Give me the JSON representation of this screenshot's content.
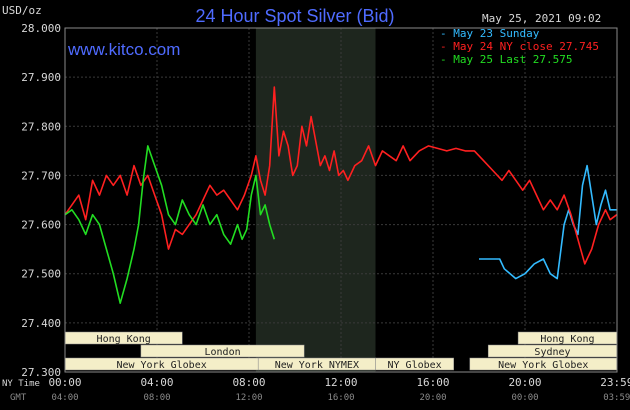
{
  "chart_data": {
    "type": "line",
    "title": "24 Hour Spot Silver (Bid)",
    "ylabel": "USD/oz",
    "site": "www.kitco.com",
    "timestamp": "May 25, 2021 09:02",
    "ylim": [
      27.3,
      28.0
    ],
    "y_ticks": [
      "27.300",
      "27.400",
      "27.500",
      "27.600",
      "27.700",
      "27.800",
      "27.900",
      "28.000"
    ],
    "x_ticks_ny": [
      "00:00",
      "04:00",
      "08:00",
      "12:00",
      "16:00",
      "20:00",
      "23:59"
    ],
    "x_ticks_gmt": [
      "04:00",
      "08:00",
      "12:00",
      "16:00",
      "20:00",
      "00:00",
      "03:59"
    ],
    "ny_label": "NY Time",
    "gmt_label": "GMT",
    "legend": [
      {
        "label": "May 23 Sunday",
        "color": "#33bbff"
      },
      {
        "label": "May 24 NY close 27.745",
        "color": "#ff2020"
      },
      {
        "label": "May 25 Last 27.575",
        "color": "#22dd22"
      }
    ],
    "series": [
      {
        "name": "May 23 Sunday",
        "color": "#33bbff",
        "x": [
          18.0,
          18.9,
          19.1,
          19.6,
          20.0,
          20.4,
          20.8,
          21.1,
          21.4,
          21.7,
          21.9,
          22.1,
          22.3,
          22.5,
          22.7,
          22.9,
          23.1,
          23.3,
          23.5,
          23.7,
          23.99
        ],
        "y": [
          27.53,
          27.53,
          27.51,
          27.49,
          27.5,
          27.52,
          27.53,
          27.5,
          27.49,
          27.6,
          27.63,
          27.6,
          27.58,
          27.68,
          27.72,
          27.66,
          27.6,
          27.64,
          27.67,
          27.63,
          27.63
        ]
      },
      {
        "name": "May 24 NY close 27.745",
        "color": "#ff2020",
        "x": [
          0.0,
          0.3,
          0.6,
          0.9,
          1.2,
          1.5,
          1.8,
          2.1,
          2.4,
          2.7,
          3.0,
          3.3,
          3.6,
          3.9,
          4.2,
          4.5,
          4.8,
          5.1,
          5.4,
          5.7,
          6.0,
          6.3,
          6.6,
          6.9,
          7.2,
          7.5,
          7.8,
          8.1,
          8.3,
          8.5,
          8.7,
          8.9,
          9.1,
          9.3,
          9.5,
          9.7,
          9.9,
          10.1,
          10.3,
          10.5,
          10.7,
          10.9,
          11.1,
          11.3,
          11.5,
          11.7,
          11.9,
          12.1,
          12.3,
          12.6,
          12.9,
          13.2,
          13.5,
          13.8,
          14.1,
          14.4,
          14.7,
          15.0,
          15.4,
          15.8,
          16.2,
          16.6,
          17.0,
          17.4,
          17.8,
          18.2,
          18.6,
          19.0,
          19.3,
          19.6,
          19.9,
          20.2,
          20.5,
          20.8,
          21.1,
          21.4,
          21.7,
          22.0,
          22.3,
          22.6,
          22.9,
          23.2,
          23.5,
          23.7,
          23.99
        ],
        "y": [
          27.62,
          27.64,
          27.66,
          27.61,
          27.69,
          27.66,
          27.7,
          27.68,
          27.7,
          27.66,
          27.72,
          27.68,
          27.7,
          27.66,
          27.62,
          27.55,
          27.59,
          27.58,
          27.6,
          27.62,
          27.65,
          27.68,
          27.66,
          27.67,
          27.65,
          27.63,
          27.66,
          27.7,
          27.74,
          27.69,
          27.66,
          27.72,
          27.88,
          27.74,
          27.79,
          27.76,
          27.7,
          27.72,
          27.8,
          27.76,
          27.82,
          27.77,
          27.72,
          27.74,
          27.71,
          27.75,
          27.7,
          27.71,
          27.69,
          27.72,
          27.73,
          27.76,
          27.72,
          27.75,
          27.74,
          27.73,
          27.76,
          27.73,
          27.75,
          27.76,
          27.755,
          27.75,
          27.755,
          27.75,
          27.75,
          27.73,
          27.71,
          27.69,
          27.71,
          27.69,
          27.67,
          27.69,
          27.66,
          27.63,
          27.65,
          27.63,
          27.66,
          27.62,
          27.57,
          27.52,
          27.55,
          27.6,
          27.63,
          27.61,
          27.62
        ]
      },
      {
        "name": "May 25 Last 27.575",
        "color": "#22dd22",
        "x": [
          0.0,
          0.3,
          0.6,
          0.9,
          1.2,
          1.5,
          1.8,
          2.1,
          2.4,
          2.7,
          3.0,
          3.2,
          3.4,
          3.6,
          3.9,
          4.2,
          4.5,
          4.8,
          5.1,
          5.4,
          5.7,
          6.0,
          6.3,
          6.6,
          6.9,
          7.2,
          7.5,
          7.7,
          7.9,
          8.1,
          8.3,
          8.5,
          8.7,
          8.9,
          9.1
        ],
        "y": [
          27.62,
          27.63,
          27.61,
          27.58,
          27.62,
          27.6,
          27.55,
          27.5,
          27.44,
          27.49,
          27.55,
          27.6,
          27.69,
          27.76,
          27.72,
          27.68,
          27.62,
          27.6,
          27.65,
          27.62,
          27.6,
          27.64,
          27.6,
          27.62,
          27.58,
          27.56,
          27.6,
          27.57,
          27.59,
          27.66,
          27.7,
          27.62,
          27.64,
          27.6,
          27.57
        ]
      }
    ],
    "sessions": [
      {
        "label": "Hong Kong",
        "row": 0,
        "x0": 0.0,
        "x1": 5.1
      },
      {
        "label": "Hong Kong",
        "row": 0,
        "x0": 19.7,
        "x1": 23.99
      },
      {
        "label": "London",
        "row": 1,
        "x0": 3.3,
        "x1": 10.4
      },
      {
        "label": "Sydney",
        "row": 1,
        "x0": 18.4,
        "x1": 23.99
      },
      {
        "label": "New York Globex",
        "row": 2,
        "x0": 0.0,
        "x1": 8.4
      },
      {
        "label": "New York NYMEX",
        "row": 2,
        "x0": 8.4,
        "x1": 13.5
      },
      {
        "label": "NY Globex",
        "row": 2,
        "x0": 13.5,
        "x1": 16.9
      },
      {
        "label": "New York Globex",
        "row": 2,
        "x0": 17.6,
        "x1": 23.99
      }
    ],
    "highlight_range": [
      8.3,
      13.5
    ],
    "grid": true
  }
}
